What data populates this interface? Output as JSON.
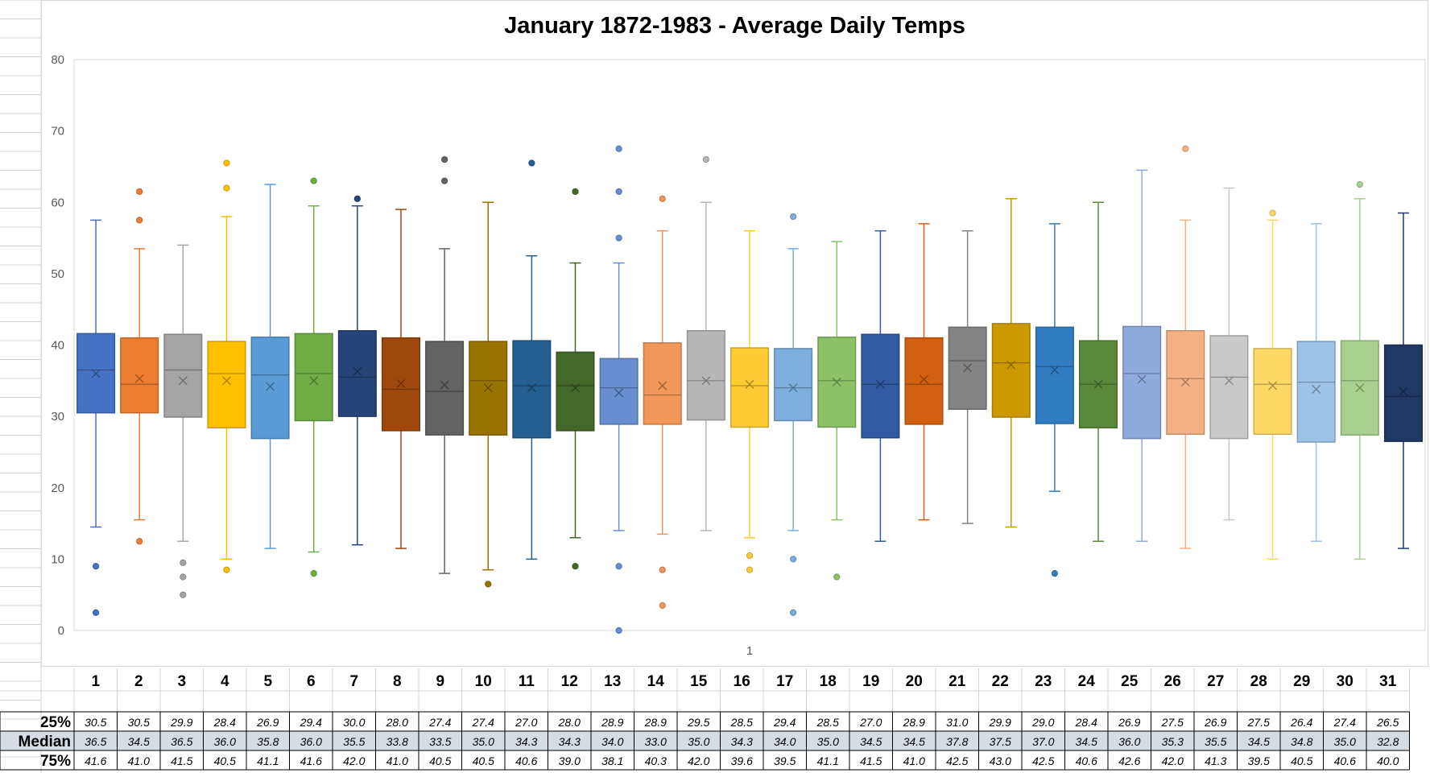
{
  "chart_data": {
    "type": "box",
    "title": "January 1872-1983  -  Average Daily Temps",
    "x_category_label": "1",
    "ylim": [
      0,
      80
    ],
    "yticks": [
      0,
      10,
      20,
      30,
      40,
      50,
      60,
      70,
      80
    ],
    "grid": false,
    "series": [
      {
        "name": "1",
        "color": "#4472c4",
        "min": 14.5,
        "q1": 30.5,
        "median": 36.5,
        "q3": 41.6,
        "max": 57.5,
        "mean": 36.0,
        "outliers": [
          9.0,
          2.5
        ]
      },
      {
        "name": "2",
        "color": "#ed7d31",
        "min": 15.5,
        "q1": 30.5,
        "median": 34.5,
        "q3": 41.0,
        "max": 53.5,
        "mean": 35.3,
        "outliers": [
          61.5,
          57.5,
          12.5
        ]
      },
      {
        "name": "3",
        "color": "#a5a5a5",
        "min": 12.5,
        "q1": 29.9,
        "median": 36.5,
        "q3": 41.5,
        "max": 54.0,
        "mean": 35.0,
        "outliers": [
          9.5,
          7.5,
          5.0
        ]
      },
      {
        "name": "4",
        "color": "#ffc000",
        "min": 10.0,
        "q1": 28.4,
        "median": 36.0,
        "q3": 40.5,
        "max": 58.0,
        "mean": 35.0,
        "outliers": [
          65.5,
          62.0,
          8.5
        ]
      },
      {
        "name": "5",
        "color": "#5b9bd5",
        "min": 11.5,
        "q1": 26.9,
        "median": 35.8,
        "q3": 41.1,
        "max": 62.5,
        "mean": 34.2,
        "outliers": []
      },
      {
        "name": "6",
        "color": "#70ad47",
        "min": 11.0,
        "q1": 29.4,
        "median": 36.0,
        "q3": 41.6,
        "max": 59.5,
        "mean": 35.0,
        "outliers": [
          63.0,
          8.0
        ]
      },
      {
        "name": "7",
        "color": "#264478",
        "min": 12.0,
        "q1": 30.0,
        "median": 35.5,
        "q3": 42.0,
        "max": 59.5,
        "mean": 36.3,
        "outliers": [
          60.5
        ]
      },
      {
        "name": "8",
        "color": "#9e480e",
        "min": 11.5,
        "q1": 28.0,
        "median": 33.8,
        "q3": 41.0,
        "max": 59.0,
        "mean": 34.6,
        "outliers": []
      },
      {
        "name": "9",
        "color": "#636363",
        "min": 8.0,
        "q1": 27.4,
        "median": 33.5,
        "q3": 40.5,
        "max": 53.5,
        "mean": 34.4,
        "outliers": [
          66.0,
          63.0
        ]
      },
      {
        "name": "10",
        "color": "#997300",
        "min": 8.5,
        "q1": 27.4,
        "median": 35.0,
        "q3": 40.5,
        "max": 60.0,
        "mean": 34.0,
        "outliers": [
          6.5
        ]
      },
      {
        "name": "11",
        "color": "#255e91",
        "min": 10.0,
        "q1": 27.0,
        "median": 34.3,
        "q3": 40.6,
        "max": 52.5,
        "mean": 34.0,
        "outliers": [
          65.5
        ]
      },
      {
        "name": "12",
        "color": "#43682b",
        "min": 13.0,
        "q1": 28.0,
        "median": 34.3,
        "q3": 39.0,
        "max": 51.5,
        "mean": 34.0,
        "outliers": [
          61.5,
          9.0
        ]
      },
      {
        "name": "13",
        "color": "#698ed0",
        "min": 14.0,
        "q1": 28.9,
        "median": 34.0,
        "q3": 38.1,
        "max": 51.5,
        "mean": 33.3,
        "outliers": [
          67.5,
          61.5,
          55.0,
          9.0,
          0.0
        ]
      },
      {
        "name": "14",
        "color": "#f1975a",
        "min": 13.5,
        "q1": 28.9,
        "median": 33.0,
        "q3": 40.3,
        "max": 56.0,
        "mean": 34.3,
        "outliers": [
          60.5,
          8.5,
          3.5
        ]
      },
      {
        "name": "15",
        "color": "#b7b7b7",
        "min": 14.0,
        "q1": 29.5,
        "median": 35.0,
        "q3": 42.0,
        "max": 60.0,
        "mean": 35.0,
        "outliers": [
          66.0
        ]
      },
      {
        "name": "16",
        "color": "#ffcd33",
        "min": 13.0,
        "q1": 28.5,
        "median": 34.3,
        "q3": 39.6,
        "max": 56.0,
        "mean": 34.5,
        "outliers": [
          10.5,
          8.5
        ]
      },
      {
        "name": "17",
        "color": "#7cafdd",
        "min": 14.0,
        "q1": 29.4,
        "median": 34.0,
        "q3": 39.5,
        "max": 53.5,
        "mean": 34.0,
        "outliers": [
          58.0,
          10.0,
          2.5
        ]
      },
      {
        "name": "18",
        "color": "#8cc168",
        "min": 15.5,
        "q1": 28.5,
        "median": 35.0,
        "q3": 41.1,
        "max": 54.5,
        "mean": 34.8,
        "outliers": [
          7.5
        ]
      },
      {
        "name": "19",
        "color": "#335aa1",
        "min": 12.5,
        "q1": 27.0,
        "median": 34.5,
        "q3": 41.5,
        "max": 56.0,
        "mean": 34.5,
        "outliers": []
      },
      {
        "name": "20",
        "color": "#d26012",
        "min": 15.5,
        "q1": 28.9,
        "median": 34.5,
        "q3": 41.0,
        "max": 57.0,
        "mean": 35.2,
        "outliers": []
      },
      {
        "name": "21",
        "color": "#848484",
        "min": 15.0,
        "q1": 31.0,
        "median": 37.8,
        "q3": 42.5,
        "max": 56.0,
        "mean": 36.8,
        "outliers": []
      },
      {
        "name": "22",
        "color": "#cc9a00",
        "min": 14.5,
        "q1": 29.9,
        "median": 37.5,
        "q3": 43.0,
        "max": 60.5,
        "mean": 37.2,
        "outliers": []
      },
      {
        "name": "23",
        "color": "#327dc2",
        "min": 19.5,
        "q1": 29.0,
        "median": 37.0,
        "q3": 42.5,
        "max": 57.0,
        "mean": 36.5,
        "outliers": [
          8.0
        ]
      },
      {
        "name": "24",
        "color": "#5a8a39",
        "min": 12.5,
        "q1": 28.4,
        "median": 34.5,
        "q3": 40.6,
        "max": 60.0,
        "mean": 34.5,
        "outliers": []
      },
      {
        "name": "25",
        "color": "#8faadc",
        "min": 12.5,
        "q1": 26.9,
        "median": 36.0,
        "q3": 42.6,
        "max": 64.5,
        "mean": 35.2,
        "outliers": []
      },
      {
        "name": "26",
        "color": "#f4b183",
        "min": 11.5,
        "q1": 27.5,
        "median": 35.3,
        "q3": 42.0,
        "max": 57.5,
        "mean": 34.8,
        "outliers": [
          67.5
        ]
      },
      {
        "name": "27",
        "color": "#c9c9c9",
        "min": 15.5,
        "q1": 26.9,
        "median": 35.5,
        "q3": 41.3,
        "max": 62.0,
        "mean": 35.0,
        "outliers": []
      },
      {
        "name": "28",
        "color": "#ffd966",
        "min": 10.0,
        "q1": 27.5,
        "median": 34.5,
        "q3": 39.5,
        "max": 57.5,
        "mean": 34.3,
        "outliers": [
          58.5
        ]
      },
      {
        "name": "29",
        "color": "#9dc3e6",
        "min": 12.5,
        "q1": 26.4,
        "median": 34.8,
        "q3": 40.5,
        "max": 57.0,
        "mean": 33.8,
        "outliers": []
      },
      {
        "name": "30",
        "color": "#a9d18e",
        "min": 10.0,
        "q1": 27.4,
        "median": 35.0,
        "q3": 40.6,
        "max": 60.5,
        "mean": 34.0,
        "outliers": [
          62.5
        ]
      },
      {
        "name": "31",
        "color": "#203864",
        "min": 11.5,
        "q1": 26.5,
        "median": 32.8,
        "q3": 40.0,
        "max": 58.5,
        "mean": 33.5,
        "outliers": []
      }
    ]
  },
  "table": {
    "days": [
      "1",
      "2",
      "3",
      "4",
      "5",
      "6",
      "7",
      "8",
      "9",
      "10",
      "11",
      "12",
      "13",
      "14",
      "15",
      "16",
      "17",
      "18",
      "19",
      "20",
      "21",
      "22",
      "23",
      "24",
      "25",
      "26",
      "27",
      "28",
      "29",
      "30",
      "31"
    ],
    "rows": [
      {
        "label": "25%",
        "values": [
          "30.5",
          "30.5",
          "29.9",
          "28.4",
          "26.9",
          "29.4",
          "30.0",
          "28.0",
          "27.4",
          "27.4",
          "27.0",
          "28.0",
          "28.9",
          "28.9",
          "29.5",
          "28.5",
          "29.4",
          "28.5",
          "27.0",
          "28.9",
          "31.0",
          "29.9",
          "29.0",
          "28.4",
          "26.9",
          "27.5",
          "26.9",
          "27.5",
          "26.4",
          "27.4",
          "26.5"
        ]
      },
      {
        "label": "Median",
        "values": [
          "36.5",
          "34.5",
          "36.5",
          "36.0",
          "35.8",
          "36.0",
          "35.5",
          "33.8",
          "33.5",
          "35.0",
          "34.3",
          "34.3",
          "34.0",
          "33.0",
          "35.0",
          "34.3",
          "34.0",
          "35.0",
          "34.5",
          "34.5",
          "37.8",
          "37.5",
          "37.0",
          "34.5",
          "36.0",
          "35.3",
          "35.5",
          "34.5",
          "34.8",
          "35.0",
          "32.8"
        ]
      },
      {
        "label": "75%",
        "values": [
          "41.6",
          "41.0",
          "41.5",
          "40.5",
          "41.1",
          "41.6",
          "42.0",
          "41.0",
          "40.5",
          "40.5",
          "40.6",
          "39.0",
          "38.1",
          "40.3",
          "42.0",
          "39.6",
          "39.5",
          "41.1",
          "41.5",
          "41.0",
          "42.5",
          "43.0",
          "42.5",
          "40.6",
          "42.6",
          "42.0",
          "41.3",
          "39.5",
          "40.5",
          "40.6",
          "40.0"
        ]
      }
    ],
    "median_row_color": "#d6dce4"
  }
}
